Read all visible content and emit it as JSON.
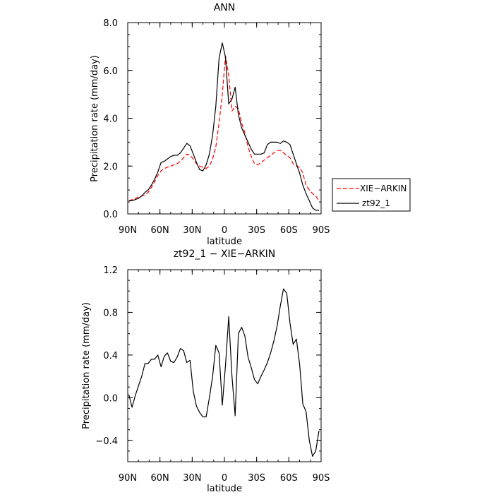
{
  "chart_data": [
    {
      "type": "line",
      "title": "ANN",
      "xlabel": "latitude",
      "ylabel": "Precipitation rate (mm/day)",
      "x_ticks": [
        {
          "value": 90,
          "label": "90N"
        },
        {
          "value": 60,
          "label": "60N"
        },
        {
          "value": 30,
          "label": "30N"
        },
        {
          "value": 0,
          "label": "0"
        },
        {
          "value": -30,
          "label": "30S"
        },
        {
          "value": -60,
          "label": "60S"
        },
        {
          "value": -90,
          "label": "90S"
        }
      ],
      "xlim": [
        90,
        -90
      ],
      "ylim": [
        0,
        8
      ],
      "y_ticks": [
        {
          "value": 0,
          "label": "0.0"
        },
        {
          "value": 2,
          "label": "2.0"
        },
        {
          "value": 4,
          "label": "4.0"
        },
        {
          "value": 6,
          "label": "6.0"
        },
        {
          "value": 8,
          "label": "8.0"
        }
      ],
      "legend": "right",
      "series": [
        {
          "name": "XIE−ARKIN",
          "color": "#ff0000",
          "dash": "dashed",
          "x": [
            89,
            86,
            83,
            80,
            77,
            74,
            71,
            68,
            65,
            62,
            59,
            56,
            53,
            50,
            47,
            44,
            41,
            38,
            35,
            32,
            29,
            26,
            23,
            20,
            17,
            14,
            11,
            8,
            5,
            2,
            -1,
            -4,
            -7,
            -10,
            -13,
            -16,
            -19,
            -22,
            -25,
            -28,
            -31,
            -34,
            -37,
            -40,
            -43,
            -46,
            -49,
            -52,
            -55,
            -58,
            -61,
            -64,
            -67,
            -70,
            -73,
            -76,
            -79,
            -82,
            -85,
            -88
          ],
          "y": [
            0.55,
            0.6,
            0.65,
            0.7,
            0.75,
            0.8,
            0.9,
            1.1,
            1.35,
            1.6,
            1.8,
            1.9,
            1.95,
            2.0,
            2.05,
            2.1,
            2.2,
            2.35,
            2.5,
            2.45,
            2.3,
            2.1,
            2.0,
            1.95,
            1.9,
            2.0,
            2.3,
            2.8,
            3.8,
            5.0,
            6.6,
            5.8,
            4.3,
            4.5,
            4.4,
            3.8,
            3.4,
            2.8,
            2.4,
            2.1,
            2.05,
            2.15,
            2.25,
            2.35,
            2.45,
            2.55,
            2.65,
            2.65,
            2.55,
            2.45,
            2.35,
            2.1,
            2.0,
            1.95,
            1.7,
            1.2,
            1.0,
            0.85,
            0.75,
            0.55
          ]
        },
        {
          "name": "zt92_1",
          "color": "#000000",
          "dash": "solid",
          "x": [
            89,
            86,
            83,
            80,
            77,
            74,
            71,
            68,
            65,
            62,
            59,
            56,
            53,
            50,
            47,
            44,
            41,
            38,
            35,
            32,
            29,
            26,
            23,
            20,
            17,
            14,
            11,
            8,
            5,
            2,
            -1,
            -4,
            -7,
            -10,
            -13,
            -16,
            -19,
            -22,
            -25,
            -28,
            -31,
            -34,
            -37,
            -40,
            -43,
            -46,
            -49,
            -52,
            -55,
            -58,
            -61,
            -64,
            -67,
            -70,
            -73,
            -76,
            -79,
            -82,
            -85,
            -88
          ],
          "y": [
            0.55,
            0.55,
            0.6,
            0.65,
            0.75,
            0.9,
            1.0,
            1.2,
            1.45,
            1.75,
            2.15,
            2.2,
            2.3,
            2.4,
            2.45,
            2.45,
            2.55,
            2.75,
            2.95,
            2.85,
            2.5,
            2.15,
            1.85,
            1.8,
            2.05,
            2.5,
            3.3,
            4.5,
            6.5,
            7.15,
            6.55,
            4.6,
            4.8,
            5.3,
            4.15,
            3.6,
            3.3,
            3.0,
            2.7,
            2.5,
            2.5,
            2.5,
            2.55,
            2.9,
            3.0,
            3.0,
            3.0,
            2.95,
            3.05,
            3.0,
            2.9,
            2.5,
            2.1,
            1.7,
            1.2,
            0.85,
            0.55,
            0.25,
            0.15,
            0.15
          ]
        }
      ]
    },
    {
      "type": "line",
      "title": "zt92_1 − XIE−ARKIN",
      "xlabel": "latitude",
      "ylabel": "Precipitation rate (mm/day)",
      "x_ticks": [
        {
          "value": 90,
          "label": "90N"
        },
        {
          "value": 60,
          "label": "60N"
        },
        {
          "value": 30,
          "label": "30N"
        },
        {
          "value": 0,
          "label": "0"
        },
        {
          "value": -30,
          "label": "30S"
        },
        {
          "value": -60,
          "label": "60S"
        },
        {
          "value": -90,
          "label": "90S"
        }
      ],
      "xlim": [
        90,
        -90
      ],
      "ylim": [
        -0.6,
        1.2
      ],
      "y_ticks": [
        {
          "value": -0.4,
          "label": "−0.4"
        },
        {
          "value": 0,
          "label": "0.0"
        },
        {
          "value": 0.4,
          "label": "0.4"
        },
        {
          "value": 0.8,
          "label": "0.8"
        },
        {
          "value": 1.2,
          "label": "1.2"
        }
      ],
      "series": [
        {
          "color": "#000000",
          "dash": "solid",
          "x": [
            89,
            86,
            83,
            80,
            77,
            74,
            71,
            68,
            65,
            62,
            59,
            56,
            53,
            50,
            47,
            44,
            41,
            38,
            35,
            32,
            29,
            26,
            23,
            20,
            17,
            14,
            11,
            8,
            5,
            2,
            -1,
            -4,
            -7,
            -10,
            -13,
            -16,
            -19,
            -22,
            -25,
            -28,
            -31,
            -34,
            -37,
            -40,
            -43,
            -46,
            -49,
            -52,
            -55,
            -58,
            -61,
            -64,
            -67,
            -70,
            -73,
            -76,
            -79,
            -82,
            -85,
            -88
          ],
          "y": [
            0.03,
            -0.09,
            0.02,
            0.11,
            0.2,
            0.32,
            0.32,
            0.36,
            0.36,
            0.4,
            0.29,
            0.39,
            0.42,
            0.34,
            0.33,
            0.38,
            0.46,
            0.44,
            0.33,
            0.35,
            0.06,
            -0.08,
            -0.14,
            -0.18,
            -0.18,
            0.0,
            0.2,
            0.49,
            0.42,
            -0.07,
            0.3,
            0.76,
            0.2,
            -0.17,
            0.6,
            0.66,
            0.58,
            0.38,
            0.28,
            0.17,
            0.13,
            0.2,
            0.26,
            0.33,
            0.42,
            0.53,
            0.67,
            0.86,
            1.02,
            0.98,
            0.7,
            0.5,
            0.55,
            0.31,
            -0.06,
            -0.13,
            -0.4,
            -0.55,
            -0.5,
            -0.31
          ]
        }
      ]
    }
  ]
}
